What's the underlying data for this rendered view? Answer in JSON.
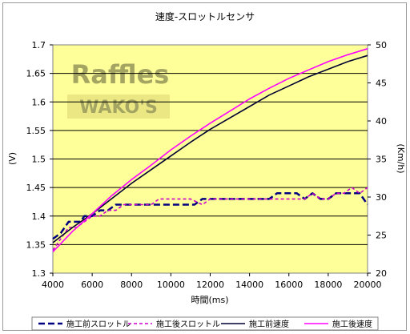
{
  "chart_data": {
    "type": "line",
    "title": "速度-スロットルセンサ",
    "xlabel": "時間(ms)",
    "ylabel_left": "(V)",
    "ylabel_right": "(Km/h)",
    "xlim": [
      4000,
      20000
    ],
    "ylim_left": [
      1.3,
      1.7
    ],
    "ylim_right": [
      20,
      50
    ],
    "x_ticks": [
      "4000",
      "6000",
      "8000",
      "10000",
      "12000",
      "14000",
      "16000",
      "18000",
      "20000"
    ],
    "y_ticks_left": [
      "1.3",
      "1.35",
      "1.4",
      "1.45",
      "1.5",
      "1.55",
      "1.6",
      "1.65",
      "1.7"
    ],
    "y_ticks_right": [
      "20",
      "25",
      "30",
      "35",
      "40",
      "45",
      "50"
    ],
    "grid": "horizontal",
    "legend_position": "bottom",
    "plot_background": "#ffff99",
    "watermark": [
      "Raffles",
      "WAKO'S"
    ],
    "series": [
      {
        "name": "施工前スロットル",
        "axis": "left",
        "color": "#000080",
        "style": "dashed",
        "x": [
          4000,
          4400,
          4800,
          5000,
          5400,
          5600,
          6000,
          6400,
          6800,
          7200,
          7600,
          8000,
          8400,
          9000,
          10000,
          11000,
          11200,
          11600,
          12000,
          13000,
          14000,
          15000,
          15400,
          16000,
          16400,
          16800,
          17200,
          17600,
          18000,
          18400,
          18800,
          19200,
          19600,
          20000
        ],
        "y": [
          1.36,
          1.37,
          1.39,
          1.39,
          1.39,
          1.4,
          1.4,
          1.41,
          1.41,
          1.42,
          1.42,
          1.42,
          1.42,
          1.42,
          1.42,
          1.42,
          1.42,
          1.43,
          1.43,
          1.43,
          1.43,
          1.43,
          1.44,
          1.44,
          1.44,
          1.43,
          1.44,
          1.43,
          1.43,
          1.44,
          1.44,
          1.44,
          1.44,
          1.42
        ]
      },
      {
        "name": "施工後スロットル",
        "axis": "left",
        "color": "#cc00cc",
        "style": "dotted",
        "x": [
          4000,
          4400,
          4800,
          5200,
          5600,
          6000,
          6400,
          6800,
          7200,
          7600,
          8000,
          8400,
          9000,
          9400,
          10000,
          11000,
          11600,
          12000,
          13000,
          14000,
          15000,
          15600,
          16000,
          16800,
          17200,
          17600,
          18000,
          18400,
          18800,
          19200,
          19600,
          20000
        ],
        "y": [
          1.34,
          1.36,
          1.38,
          1.38,
          1.39,
          1.4,
          1.4,
          1.41,
          1.41,
          1.42,
          1.42,
          1.42,
          1.42,
          1.43,
          1.43,
          1.43,
          1.42,
          1.43,
          1.43,
          1.43,
          1.43,
          1.43,
          1.43,
          1.43,
          1.44,
          1.43,
          1.43,
          1.44,
          1.44,
          1.45,
          1.44,
          1.45
        ]
      },
      {
        "name": "施工前速度",
        "axis": "right",
        "color": "#000033",
        "style": "solid",
        "x": [
          4000,
          5000,
          6000,
          7000,
          8000,
          9000,
          10000,
          11000,
          12000,
          13000,
          14000,
          15000,
          16000,
          17000,
          18000,
          19000,
          20000
        ],
        "y": [
          24.0,
          26.0,
          27.8,
          29.8,
          31.8,
          33.6,
          35.4,
          37.2,
          38.9,
          40.4,
          41.9,
          43.4,
          44.6,
          45.8,
          46.8,
          47.8,
          48.6
        ]
      },
      {
        "name": "施工後速度",
        "axis": "right",
        "color": "#ff00ff",
        "style": "solid",
        "x": [
          4000,
          5000,
          6000,
          7000,
          8000,
          9000,
          10000,
          11000,
          12000,
          13000,
          14000,
          15000,
          16000,
          17000,
          18000,
          19000,
          20000
        ],
        "y": [
          22.8,
          25.5,
          27.8,
          30.2,
          32.3,
          34.2,
          36.2,
          38.0,
          39.7,
          41.3,
          42.9,
          44.3,
          45.6,
          46.7,
          47.8,
          48.7,
          49.5
        ]
      }
    ]
  }
}
